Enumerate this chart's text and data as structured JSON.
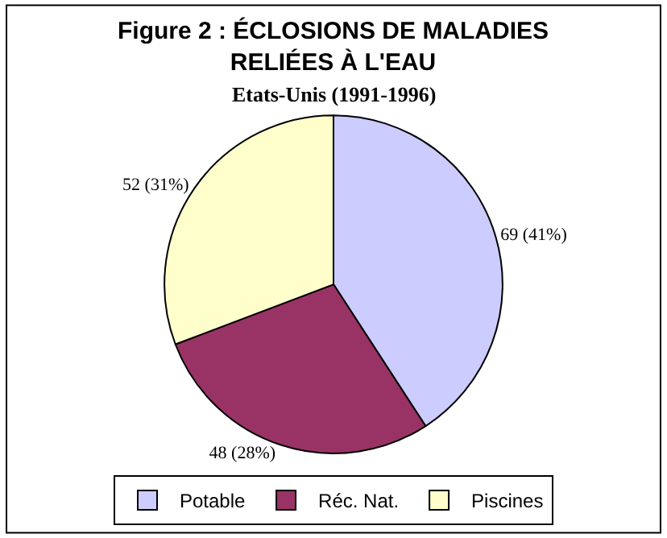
{
  "chart_data": {
    "type": "pie",
    "title": "Figure 2 : ÉCLOSIONS DE MALADIES\nRELIÉES À L'EAU",
    "subtitle": "Etats-Unis (1991-1996)",
    "categories": [
      "Potable",
      "Réc. Nat.",
      "Piscines"
    ],
    "values": [
      69,
      48,
      52
    ],
    "value_labels": [
      "69 (41%)",
      "48 (28%)",
      "52 (31%)"
    ],
    "colors": [
      "#ccccff",
      "#993366",
      "#ffffcc"
    ],
    "legend": "bottom"
  }
}
